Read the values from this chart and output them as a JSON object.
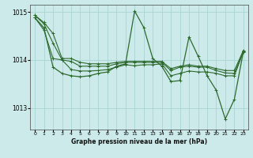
{
  "title": "Graphe pression niveau de la mer (hPa)",
  "background_color": "#cdeaea",
  "grid_color": "#a8d4d4",
  "line_color": "#2d6a2d",
  "xlim": [
    -0.5,
    23.5
  ],
  "ylim": [
    1012.55,
    1015.15
  ],
  "yticks": [
    1013,
    1014,
    1015
  ],
  "xticks": [
    0,
    1,
    2,
    3,
    4,
    5,
    6,
    7,
    8,
    9,
    10,
    11,
    12,
    13,
    14,
    15,
    16,
    17,
    18,
    19,
    20,
    21,
    22,
    23
  ],
  "series": [
    [
      1014.93,
      1014.78,
      1014.55,
      1014.03,
      1014.03,
      1013.95,
      1013.92,
      1013.92,
      1013.92,
      1013.95,
      1013.97,
      1013.97,
      1013.97,
      1013.97,
      1013.97,
      1013.82,
      1013.87,
      1013.9,
      1013.87,
      1013.87,
      1013.82,
      1013.78,
      1013.78,
      1014.2
    ],
    [
      1014.88,
      1014.62,
      1014.03,
      1014.0,
      1013.8,
      1013.77,
      1013.77,
      1013.78,
      1013.8,
      1013.85,
      1013.9,
      1013.88,
      1013.9,
      1013.9,
      1013.92,
      1013.67,
      1013.72,
      1013.77,
      1013.75,
      1013.75,
      1013.72,
      1013.67,
      1013.67,
      1014.17
    ],
    [
      1014.88,
      1014.67,
      1013.85,
      1013.72,
      1013.67,
      1013.65,
      1013.67,
      1013.72,
      1013.75,
      1013.87,
      1013.92,
      1015.02,
      1014.68,
      1014.03,
      1013.87,
      1013.55,
      1013.57,
      1014.48,
      1014.08,
      1013.67,
      1013.37,
      1012.77,
      1013.18,
      1014.18
    ],
    [
      1014.93,
      1014.75,
      1014.35,
      1014.0,
      1013.97,
      1013.87,
      1013.87,
      1013.87,
      1013.87,
      1013.92,
      1013.95,
      1013.95,
      1013.95,
      1013.95,
      1013.95,
      1013.78,
      1013.85,
      1013.87,
      1013.85,
      1013.85,
      1013.78,
      1013.73,
      1013.72,
      1014.18
    ]
  ]
}
